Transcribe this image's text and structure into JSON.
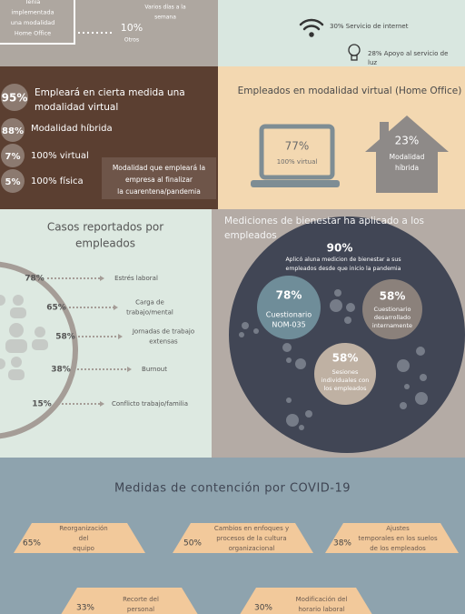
{
  "top_left": {
    "intro_lines": [
      "Tenía",
      "implementada",
      "una modalidad",
      "Home Office"
    ],
    "note_lines": [
      "Varios días a la",
      "semana"
    ],
    "other_percent": "10%",
    "other_label": "Otros"
  },
  "top_right": {
    "internet": "30% Servicio de internet",
    "light_lines": [
      "28% Apoyo al servicio de",
      "luz"
    ]
  },
  "post_pandemia": {
    "headline_percent": "95%",
    "headline_lines": [
      "Empleará en cierta medida una",
      "modalidad virtual"
    ],
    "items": [
      {
        "percent": "88%",
        "label": "Modalidad híbrida"
      },
      {
        "percent": "7%",
        "label": "100% virtual"
      },
      {
        "percent": "5%",
        "label": "100% física"
      }
    ],
    "caption_lines": [
      "Modalidad  que empleará la",
      "empresa al finalizar",
      "la cuarentena/pandemia"
    ]
  },
  "home_office": {
    "title": "Empleados en modalidad virtual (Home Office)",
    "virtual": {
      "percent": "77%",
      "label": "100% virtual"
    },
    "hibrida": {
      "percent": "23%",
      "label_lines": [
        "Modalidad",
        "híbrida"
      ]
    }
  },
  "casos": {
    "title_lines": [
      "Casos reportados por",
      "empleados"
    ],
    "items": [
      {
        "percent": "78%",
        "label_lines": [
          "Estrés laboral"
        ]
      },
      {
        "percent": "65%",
        "label_lines": [
          "Carga de",
          "trabajo/mental"
        ]
      },
      {
        "percent": "58%",
        "label_lines": [
          "Jornadas de trabajo",
          "extensas"
        ]
      },
      {
        "percent": "38%",
        "label_lines": [
          "Burnout"
        ]
      },
      {
        "percent": "15%",
        "label_lines": [
          "Conflicto trabajo/familia"
        ]
      }
    ]
  },
  "bienestar": {
    "title_lines": [
      "Mediciones de bienestar ha aplicado a los",
      "empleados"
    ],
    "headline_percent": "90%",
    "headline_lines": [
      "Aplicó aluna medicion de bienestar a sus",
      "empleados desde que inicio la pandemia"
    ],
    "bubbles": [
      {
        "percent": "78%",
        "label_lines": [
          "Cuestionario",
          "NOM-035"
        ]
      },
      {
        "percent": "58%",
        "label_lines": [
          "Cuestionario",
          "desarrollado",
          "internamente"
        ]
      },
      {
        "percent": "58%",
        "label_lines": [
          "Sesiones",
          "individuales con",
          "los empleados"
        ]
      }
    ]
  },
  "medidas": {
    "title": "Medidas de contención por COVID-19",
    "items": [
      {
        "percent": "65%",
        "label_lines": [
          "Reorganización",
          "del",
          "equipo"
        ]
      },
      {
        "percent": "50%",
        "label_lines": [
          "Cambios en enfoques y",
          "procesos de la cultura",
          "organizacional"
        ]
      },
      {
        "percent": "38%",
        "label_lines": [
          "Ajustes",
          "temporales en los suelos",
          "de los empleados"
        ]
      },
      {
        "percent": "33%",
        "label_lines": [
          "Recorte del",
          "personal"
        ]
      },
      {
        "percent": "30%",
        "label_lines": [
          "Modificación del",
          "horario laboral"
        ]
      }
    ]
  }
}
